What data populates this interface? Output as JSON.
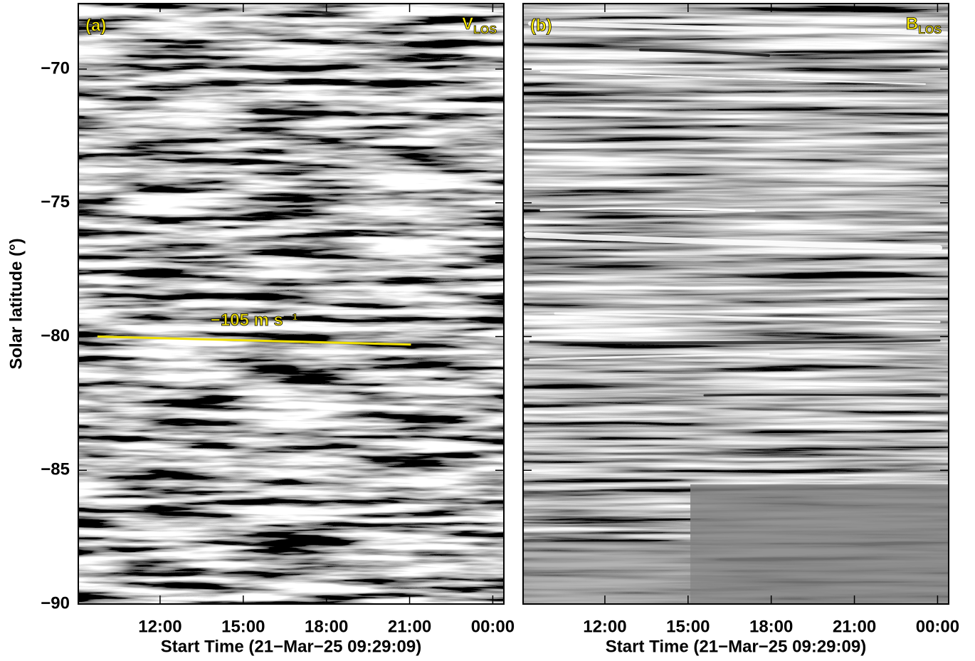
{
  "chart_data": [
    {
      "type": "heatmap",
      "panel_label": "(a)",
      "quantity": {
        "main": "V",
        "sub": "LOS"
      },
      "xlabel": "Start Time (21−Mar−25 09:29:09)",
      "ylabel": "Solar latitude (°)",
      "xlim": [
        9.05,
        24.4
      ],
      "ylim": [
        -90,
        -67.55
      ],
      "xticks": [
        {
          "value": 12,
          "label": "12:00"
        },
        {
          "value": 15,
          "label": "15:00"
        },
        {
          "value": 18,
          "label": "18:00"
        },
        {
          "value": 21,
          "label": "21:00"
        },
        {
          "value": 24,
          "label": "00:00"
        }
      ],
      "yticks": [
        {
          "value": -90,
          "label": "−90"
        },
        {
          "value": -85,
          "label": "−85"
        },
        {
          "value": -80,
          "label": "−80"
        },
        {
          "value": -75,
          "label": "−75"
        },
        {
          "value": -70,
          "label": "−70"
        }
      ],
      "line": {
        "x": [
          9.74,
          21.05
        ],
        "y": [
          -80.0,
          -80.3
        ],
        "color": "#f0e000",
        "label": "−105 m s⁻¹"
      }
    },
    {
      "type": "heatmap",
      "panel_label": "(b)",
      "quantity": {
        "main": "B",
        "sub": "LOS"
      },
      "xlabel": "Start Time (21−Mar−25 09:29:09)",
      "xlim": [
        9.05,
        24.4
      ],
      "ylim": [
        -90,
        -67.55
      ],
      "xticks": [
        {
          "value": 12,
          "label": "12:00"
        },
        {
          "value": 15,
          "label": "15:00"
        },
        {
          "value": 18,
          "label": "18:00"
        },
        {
          "value": 21,
          "label": "21:00"
        },
        {
          "value": 24,
          "label": "00:00"
        }
      ],
      "yticks": [
        {
          "value": -90
        },
        {
          "value": -85
        },
        {
          "value": -80
        },
        {
          "value": -75
        },
        {
          "value": -70
        }
      ]
    }
  ]
}
